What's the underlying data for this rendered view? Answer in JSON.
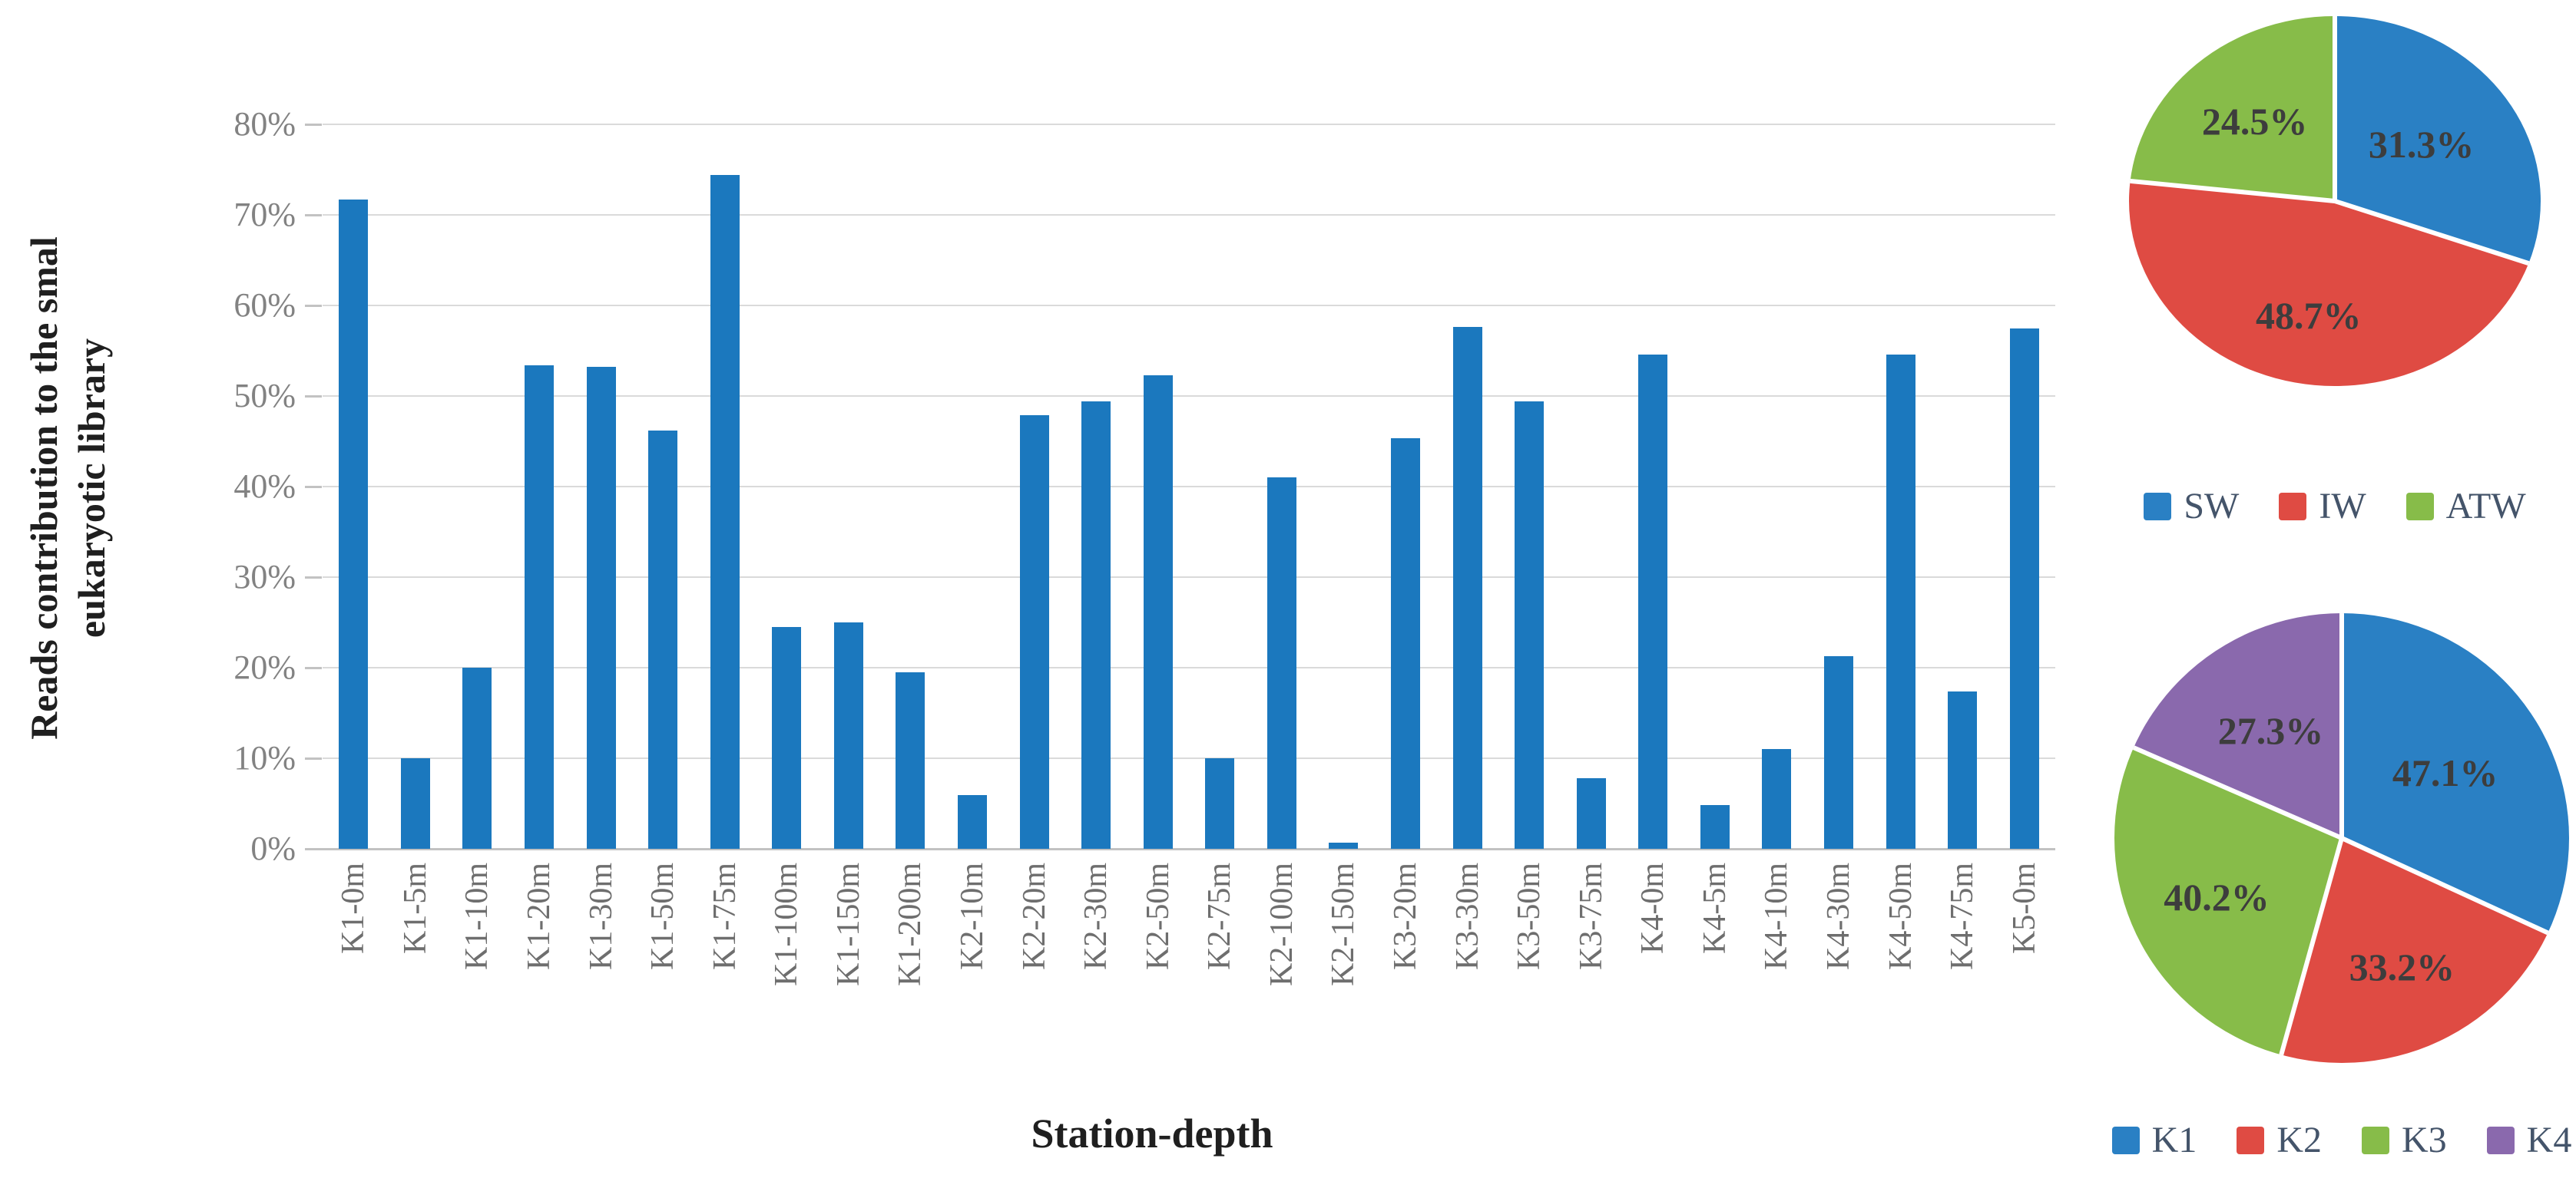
{
  "chart_data": [
    {
      "type": "bar",
      "title": "",
      "xlabel": "Station-depth",
      "ylabel": "Reads contribution to the smal eukaryotic library",
      "ylabel_lines": [
        "Reads contribution to the smal",
        "eukaryotic library"
      ],
      "categories": [
        "K1-0m",
        "K1-5m",
        "K1-10m",
        "K1-20m",
        "K1-30m",
        "K1-50m",
        "K1-75m",
        "K1-100m",
        "K1-150m",
        "K1-200m",
        "K2-10m",
        "K2-20m",
        "K2-30m",
        "K2-50m",
        "K2-75m",
        "K2-100m",
        "K2-150m",
        "K3-20m",
        "K3-30m",
        "K3-50m",
        "K3-75m",
        "K4-0m",
        "K4-5m",
        "K4-10m",
        "K4-30m",
        "K4-50m",
        "K4-75m",
        "K5-0m"
      ],
      "values": [
        71.7,
        10.0,
        20.0,
        53.4,
        53.2,
        46.2,
        74.4,
        24.5,
        25.0,
        19.5,
        5.9,
        47.9,
        49.4,
        52.3,
        10.0,
        41.0,
        0.7,
        45.3,
        57.6,
        49.4,
        7.8,
        54.6,
        4.8,
        11.0,
        21.3,
        54.6,
        17.4,
        57.5
      ],
      "ylim": [
        0,
        80
      ],
      "ytick_labels": [
        "0%",
        "10%",
        "20%",
        "30%",
        "40%",
        "50%",
        "60%",
        "70%",
        "80%"
      ],
      "grid": true,
      "legend_position": "none",
      "bar_color": "#1b78be"
    },
    {
      "type": "pie",
      "name": "water-mass-composition",
      "labels": [
        "SW",
        "IW",
        "ATW"
      ],
      "values": [
        31.3,
        48.7,
        24.5
      ],
      "value_labels": [
        "31.3%",
        "48.7%",
        "24.5%"
      ],
      "colors": [
        "#2a80c4",
        "#df4b43",
        "#87bc49"
      ],
      "legend_position": "bottom"
    },
    {
      "type": "pie",
      "name": "station-composition",
      "labels": [
        "K1",
        "K2",
        "K3",
        "K4"
      ],
      "values": [
        47.1,
        33.2,
        40.2,
        27.3
      ],
      "value_labels": [
        "47.1%",
        "33.2%",
        "40.2%",
        "27.3%"
      ],
      "colors": [
        "#2a80c4",
        "#df4b43",
        "#87bc49",
        "#8a69ad"
      ],
      "legend_position": "bottom"
    }
  ]
}
